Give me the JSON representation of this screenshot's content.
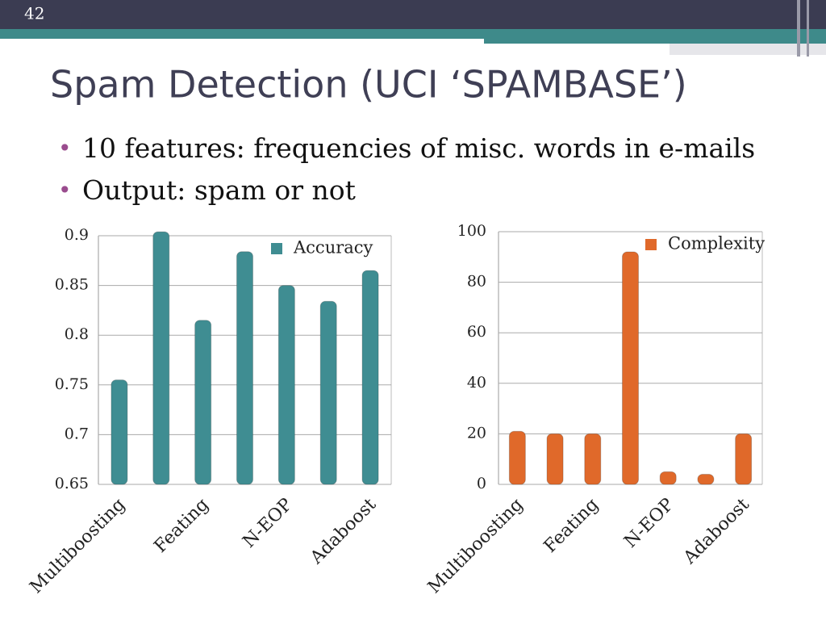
{
  "slide_number": "42",
  "title": "Spam Detection (UCI ‘SPAMBASE’)",
  "bullets": [
    "10 features: frequencies of misc. words in e-mails",
    "Output: spam or not"
  ],
  "chart_data": [
    {
      "type": "bar",
      "categories": [
        "Multiboosting",
        null,
        "Feating",
        null,
        "N-EOP",
        null,
        "Adaboost"
      ],
      "series": [
        {
          "name": "Accuracy",
          "color": "#3f8d92",
          "values": [
            0.755,
            0.904,
            0.815,
            0.884,
            0.85,
            0.834,
            0.865
          ]
        }
      ],
      "ylim": [
        0.65,
        0.9
      ],
      "yticks": [
        0.65,
        0.7,
        0.75,
        0.8,
        0.85,
        0.9
      ],
      "grid": true,
      "legend": "upper right"
    },
    {
      "type": "bar",
      "categories": [
        "Multiboosting",
        null,
        "Feating",
        null,
        "N-EOP",
        null,
        "Adaboost"
      ],
      "series": [
        {
          "name": "Complexity",
          "color": "#e0692a",
          "values": [
            21,
            20,
            20,
            92,
            5,
            4,
            20
          ]
        }
      ],
      "ylim": [
        0,
        100
      ],
      "yticks": [
        0,
        20,
        40,
        60,
        80,
        100
      ],
      "grid": true,
      "legend": "upper right"
    }
  ]
}
